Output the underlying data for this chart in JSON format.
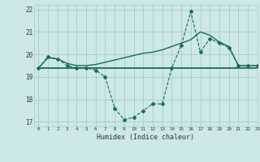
{
  "title": "",
  "xlabel": "Humidex (Indice chaleur)",
  "ylabel": "",
  "bg_color": "#cce8e8",
  "grid_color": "#aacccc",
  "line_color": "#1a6b5a",
  "xlim": [
    -0.5,
    23
  ],
  "ylim": [
    16.8,
    22.2
  ],
  "yticks": [
    17,
    18,
    19,
    20,
    21,
    22
  ],
  "xticks": [
    0,
    1,
    2,
    3,
    4,
    5,
    6,
    7,
    8,
    9,
    10,
    11,
    12,
    13,
    14,
    15,
    16,
    17,
    18,
    19,
    20,
    21,
    22,
    23
  ],
  "series_dashed": {
    "x": [
      0,
      1,
      2,
      3,
      4,
      5,
      6,
      7,
      8,
      9,
      10,
      11,
      12,
      13,
      14,
      15,
      16,
      17,
      18,
      19,
      20,
      21,
      22,
      23
    ],
    "y": [
      19.4,
      19.9,
      19.8,
      19.5,
      19.4,
      19.4,
      19.3,
      19.0,
      17.6,
      17.1,
      17.2,
      17.5,
      17.8,
      17.8,
      19.4,
      20.4,
      21.9,
      20.1,
      20.7,
      20.5,
      20.3,
      19.5,
      19.5,
      19.5
    ]
  },
  "series_smooth": {
    "x": [
      0,
      1,
      2,
      3,
      4,
      5,
      6,
      7,
      8,
      9,
      10,
      11,
      12,
      13,
      14,
      15,
      16,
      17,
      18,
      19,
      20,
      21,
      22,
      23
    ],
    "y": [
      19.4,
      19.85,
      19.8,
      19.6,
      19.5,
      19.5,
      19.55,
      19.65,
      19.75,
      19.85,
      19.95,
      20.05,
      20.1,
      20.2,
      20.35,
      20.5,
      20.65,
      21.0,
      20.85,
      20.55,
      20.35,
      19.5,
      19.5,
      19.5
    ]
  },
  "series_flat": {
    "x": [
      0,
      23
    ],
    "y": [
      19.4,
      19.4
    ]
  }
}
